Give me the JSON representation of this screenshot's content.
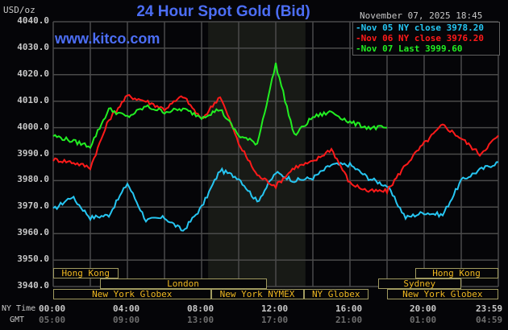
{
  "header": {
    "title": "24 Hour Spot Gold (Bid)",
    "unit_label": "USD/oz",
    "datetime": "November 07, 2025 18:45",
    "watermark": "www.kitco.com"
  },
  "legend": [
    {
      "label": "Nov 05 NY close 3978.20",
      "color": "#26c6f2"
    },
    {
      "label": "Nov 06 NY close 3976.20",
      "color": "#ff1a1a"
    },
    {
      "label": "Nov 07 Last 3999.60",
      "color": "#22ee22"
    }
  ],
  "y_axis": {
    "ticks": [
      "4040.0",
      "4030.0",
      "4020.0",
      "4010.0",
      "4000.0",
      "3990.0",
      "3980.0",
      "3970.0",
      "3960.0",
      "3950.0",
      "3940.0"
    ]
  },
  "x_axis": {
    "ny_label": "NY Time",
    "gmt_label": "GMT",
    "ny_ticks": [
      "00:00",
      "04:00",
      "08:00",
      "12:00",
      "16:00",
      "20:00",
      "23:59"
    ],
    "gmt_ticks": [
      "05:00",
      "09:00",
      "13:00",
      "17:00",
      "21:00",
      "01:00",
      "04:59"
    ]
  },
  "sessions": {
    "row1": [
      {
        "label": "Hong Kong",
        "start": "00:00",
        "end": "03:30"
      },
      {
        "label": "Hong Kong",
        "start": "19:30",
        "end": "23:59"
      }
    ],
    "row2": [
      {
        "label": "London",
        "start": "02:30",
        "end": "11:30"
      },
      {
        "label": "Sydney",
        "start": "17:30",
        "end": "22:00"
      }
    ],
    "row3": [
      {
        "label": "New York Globex",
        "start": "00:00",
        "end": "08:30"
      },
      {
        "label": "New York NYMEX",
        "start": "08:30",
        "end": "13:30"
      },
      {
        "label": "NY Globex",
        "start": "13:30",
        "end": "17:00"
      },
      {
        "label": "New York Globex",
        "start": "18:00",
        "end": "23:59"
      }
    ]
  },
  "colors": {
    "title": "#4c6ef5",
    "grid": "#4a4a4a",
    "shade": "#181a16",
    "session_border": "#a09a60",
    "session_text": "#f0b820",
    "background": "#050508"
  },
  "chart_data": {
    "type": "line",
    "title": "24 Hour Spot Gold (Bid)",
    "xlabel": "NY Time / GMT",
    "ylabel": "USD/oz",
    "ylim": [
      3940,
      4040
    ],
    "xlim": [
      "00:00",
      "23:59"
    ],
    "grid": true,
    "legend_position": "top-right",
    "x": [
      "00:00",
      "01:00",
      "02:00",
      "03:00",
      "04:00",
      "05:00",
      "06:00",
      "07:00",
      "08:00",
      "09:00",
      "10:00",
      "11:00",
      "12:00",
      "13:00",
      "14:00",
      "15:00",
      "16:00",
      "17:00",
      "18:00",
      "19:00",
      "20:00",
      "21:00",
      "22:00",
      "23:00",
      "23:59"
    ],
    "series": [
      {
        "name": "Nov 05 NY close 3978.20",
        "color": "#26c6f2",
        "values": [
          3969,
          3974,
          3966,
          3967,
          3979,
          3965,
          3966,
          3961,
          3970,
          3984,
          3981,
          3972,
          3983,
          3980,
          3981,
          3986,
          3986,
          3981,
          3978,
          3966,
          3968,
          3967,
          3980,
          3984,
          3987
        ]
      },
      {
        "name": "Nov 06 NY close 3976.20",
        "color": "#ff1a1a",
        "values": [
          3988,
          3987,
          3985,
          4003,
          4012,
          4010,
          4007,
          4012,
          4003,
          4012,
          3994,
          3982,
          3978,
          3985,
          3987,
          3992,
          3979,
          3976,
          3976,
          3986,
          3994,
          4001,
          3996,
          3990,
          3997
        ]
      },
      {
        "name": "Nov 07 Last 3999.60",
        "color": "#22ee22",
        "values": [
          3997,
          3995,
          3993,
          4007,
          4004,
          4008,
          4006,
          4007,
          4004,
          4007,
          3997,
          3994,
          4024,
          3997,
          4004,
          4006,
          4002,
          4000,
          4000
        ]
      }
    ]
  }
}
